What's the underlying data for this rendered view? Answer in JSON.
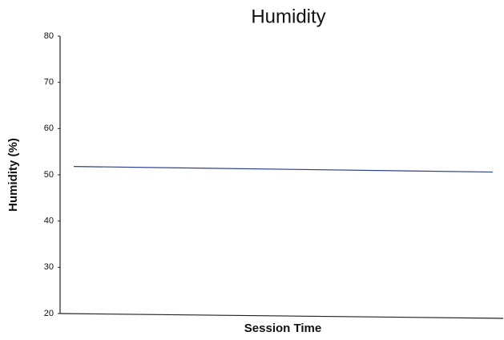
{
  "chart_data": {
    "type": "line",
    "title": "Humidity",
    "x_label": "Session Time",
    "y_label": "Humidity (%)",
    "categories": [
      null,
      null
    ],
    "series": [
      {
        "name": "Humidity",
        "color": "#2b3f8c",
        "values": [
          51.8,
          50.6
        ]
      }
    ],
    "ylim": [
      20,
      80
    ],
    "yticks": [
      20,
      30,
      40,
      50,
      60,
      70,
      80
    ],
    "grid": false
  }
}
